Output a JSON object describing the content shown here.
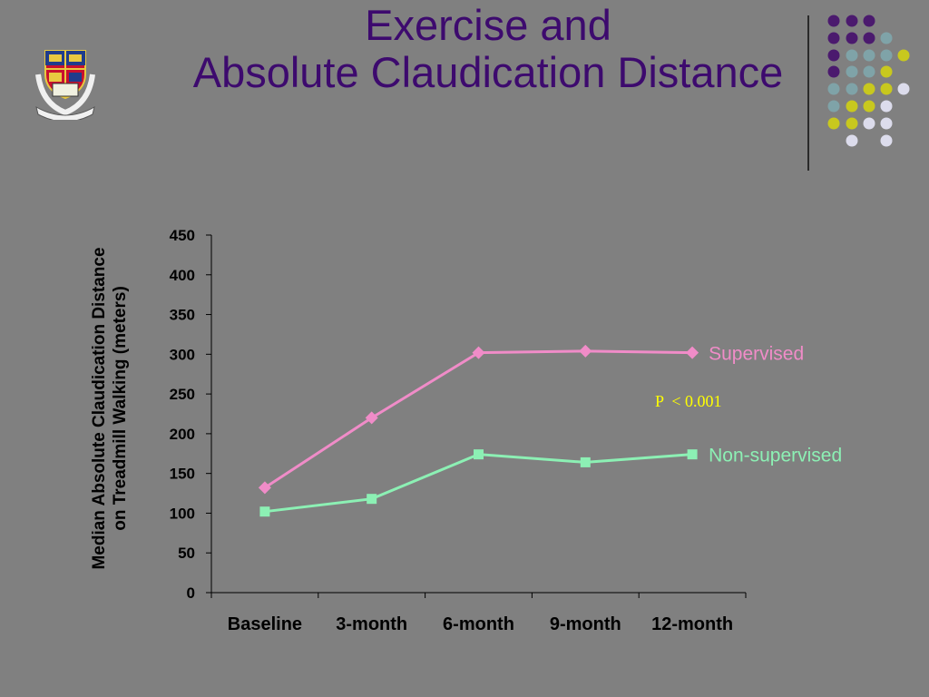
{
  "slide": {
    "title_line1": "Exercise and",
    "title_line2": "Absolute Claudication Distance",
    "title_color": "#3d0a6e",
    "background": "#808080",
    "dot_colors": [
      "#4b1a6e",
      "#7fa3a8",
      "#c8c81e",
      "#dcdcec"
    ]
  },
  "chart_data": {
    "type": "line",
    "categories": [
      "Baseline",
      "3-month",
      "6-month",
      "9-month",
      "12-month"
    ],
    "ylabel": "Median Absolute Claudication Distance on Treadmill Walking (meters)",
    "ylabel_line1": "Median Absolute Claudication Distance",
    "ylabel_line2": "on Treadmill Walking (meters)",
    "ylim": [
      0,
      450
    ],
    "yticks": [
      0,
      50,
      100,
      150,
      200,
      250,
      300,
      350,
      400,
      450
    ],
    "grid": false,
    "series": [
      {
        "name": "Supervised",
        "values": [
          132,
          220,
          302,
          304,
          302
        ],
        "color": "#f08cc8",
        "marker": "diamond"
      },
      {
        "name": "Non-supervised",
        "values": [
          102,
          118,
          174,
          164,
          174
        ],
        "color": "#8cf0b4",
        "marker": "square"
      }
    ],
    "annotation": {
      "text": "P  < 0.001",
      "color": "#ffff00"
    }
  }
}
